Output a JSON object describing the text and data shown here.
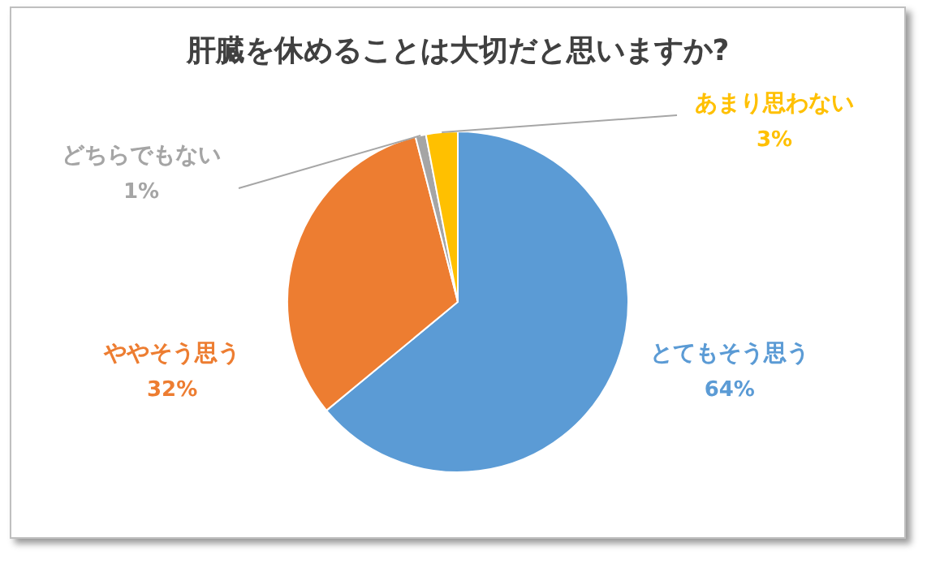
{
  "chart_data": {
    "type": "pie",
    "title": "肝臓を休めることは大切だと思いますか?",
    "categories": [
      "とてもそう思う",
      "ややそう思う",
      "どちらでもない",
      "あまり思わない"
    ],
    "values": [
      64,
      32,
      1,
      3
    ],
    "colors": [
      "#5b9bd5",
      "#ed7d31",
      "#a5a5a5",
      "#ffc000"
    ],
    "value_labels": [
      "64%",
      "32%",
      "1%",
      "3%"
    ],
    "legend": false
  }
}
